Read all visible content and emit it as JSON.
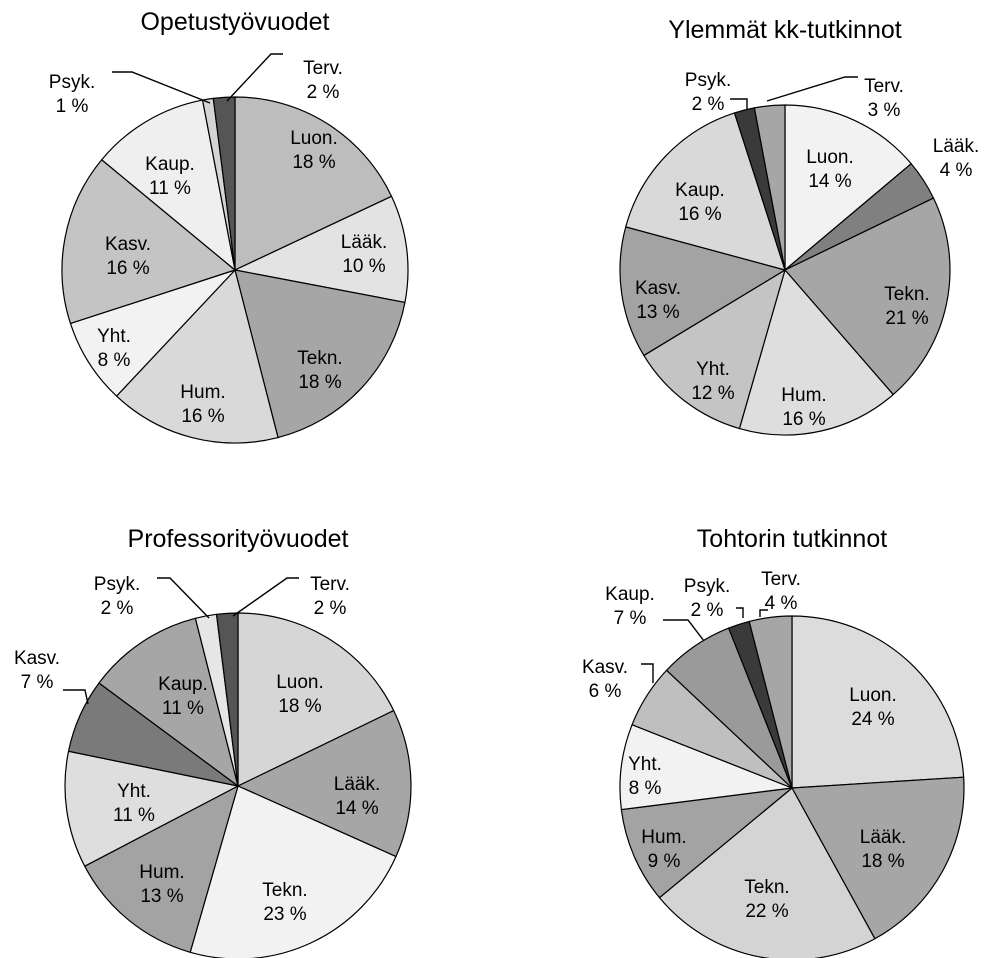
{
  "chart_data": [
    {
      "type": "pie",
      "title": "Opetustyövuodet",
      "categories": [
        "Luon.",
        "Lääk.",
        "Tekn.",
        "Hum.",
        "Yht.",
        "Kasv.",
        "Kaup.",
        "Psyk.",
        "Terv."
      ],
      "values": [
        18,
        10,
        18,
        16,
        8,
        16,
        11,
        1,
        2
      ],
      "labels": [
        "18 %",
        "10 %",
        "18 %",
        "16 %",
        "8 %",
        "16 %",
        "11 %",
        "1 %",
        "2 %"
      ],
      "colors": [
        "#bdbdbd",
        "#e3e3e3",
        "#a6a6a6",
        "#d9d9d9",
        "#f2f2f2",
        "#c4c4c4",
        "#efefef",
        "#d4d4d4",
        "#555555"
      ]
    },
    {
      "type": "pie",
      "title": "Ylemmät kk-tutkinnot",
      "categories": [
        "Luon.",
        "Lääk.",
        "Tekn.",
        "Hum.",
        "Yht.",
        "Kasv.",
        "Kaup.",
        "Psyk.",
        "Terv."
      ],
      "values": [
        14,
        4,
        21,
        16,
        12,
        13,
        16,
        2,
        3
      ],
      "labels": [
        "14 %",
        "4 %",
        "21 %",
        "16 %",
        "12 %",
        "13 %",
        "16 %",
        "2 %",
        "3 %"
      ],
      "colors": [
        "#f2f2f2",
        "#808080",
        "#a6a6a6",
        "#dedede",
        "#c4c4c4",
        "#a3a3a3",
        "#d9d9d9",
        "#3a3a3a",
        "#a6a6a6"
      ]
    },
    {
      "type": "pie",
      "title": "Professorityövuodet",
      "categories": [
        "Luon.",
        "Lääk.",
        "Tekn.",
        "Hum.",
        "Yht.",
        "Kasv.",
        "Kaup.",
        "Psyk.",
        "Terv."
      ],
      "values": [
        18,
        14,
        23,
        13,
        11,
        7,
        11,
        2,
        2
      ],
      "labels": [
        "18 %",
        "14 %",
        "23 %",
        "13 %",
        "11 %",
        "7 %",
        "11 %",
        "2 %",
        "2 %"
      ],
      "colors": [
        "#d6d6d6",
        "#a6a6a6",
        "#f2f2f2",
        "#a3a3a3",
        "#dedede",
        "#7a7a7a",
        "#a6a6a6",
        "#e6e6e6",
        "#555555"
      ]
    },
    {
      "type": "pie",
      "title": "Tohtorin tutkinnot",
      "categories": [
        "Luon.",
        "Lääk.",
        "Tekn.",
        "Hum.",
        "Yht.",
        "Kasv.",
        "Kaup.",
        "Psyk.",
        "Terv."
      ],
      "values": [
        24,
        18,
        22,
        9,
        8,
        6,
        7,
        2,
        4
      ],
      "labels": [
        "24 %",
        "18 %",
        "22 %",
        "9 %",
        "8 %",
        "6 %",
        "7 %",
        "2 %",
        "4 %"
      ],
      "colors": [
        "#dcdcdc",
        "#a6a6a6",
        "#d4d4d4",
        "#a3a3a3",
        "#f2f2f2",
        "#bfbfbf",
        "#9a9a9a",
        "#3a3a3a",
        "#a6a6a6"
      ]
    }
  ]
}
